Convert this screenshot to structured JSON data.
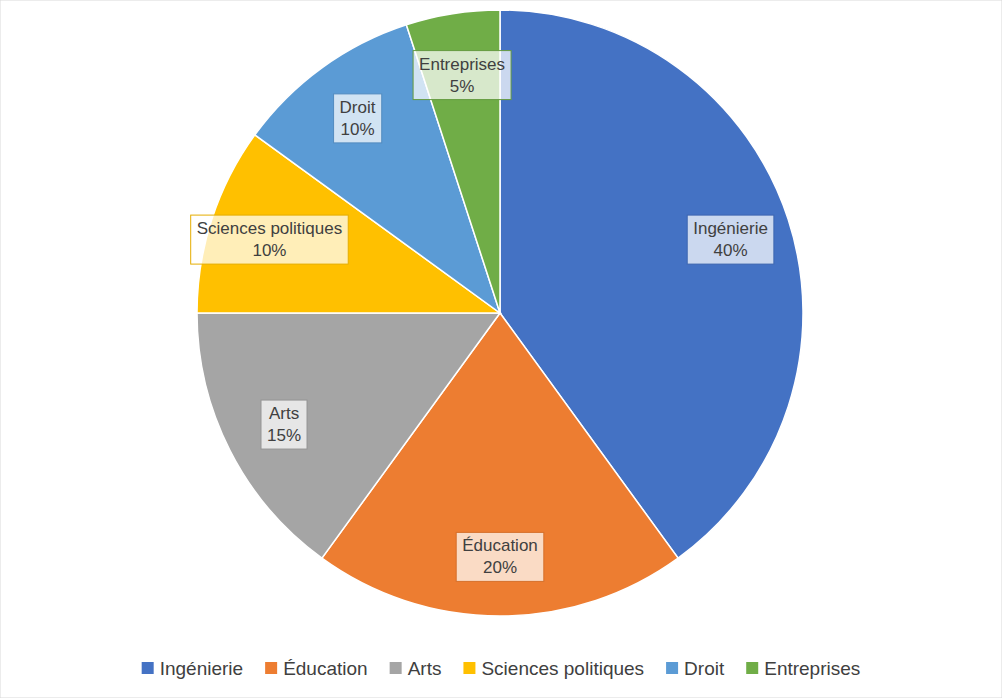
{
  "chart_data": {
    "type": "pie",
    "categories": [
      "Ingénierie",
      "Éducation",
      "Arts",
      "Sciences politiques",
      "Droit",
      "Entreprises"
    ],
    "values": [
      40,
      20,
      15,
      10,
      10,
      5
    ],
    "value_labels": [
      "40%",
      "20%",
      "15%",
      "10%",
      "10%",
      "5%"
    ],
    "colors": [
      "#4472c4",
      "#ed7d31",
      "#a5a5a5",
      "#ffc000",
      "#5b9bd5",
      "#70ad47"
    ],
    "data_labels": true,
    "legend": "bottom"
  }
}
